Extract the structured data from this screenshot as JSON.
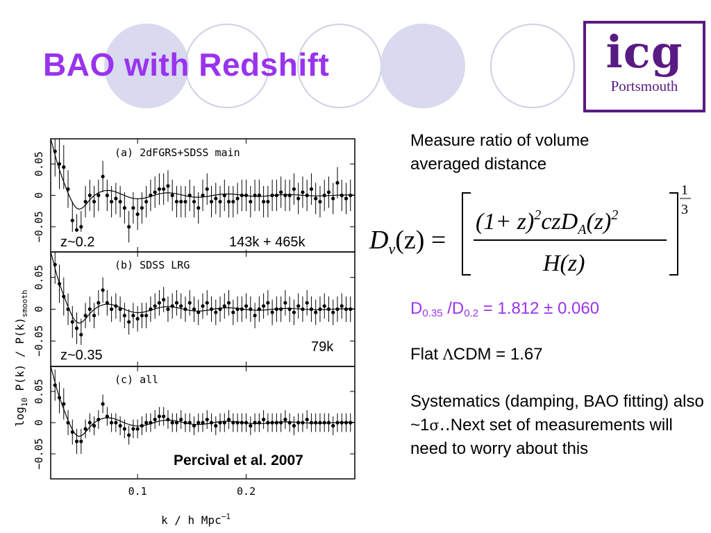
{
  "slide": {
    "title": "BAO with Redshift",
    "logo": {
      "mark": "icg",
      "sub": "Portsmouth"
    },
    "accent_color": "#9933ee",
    "logo_color": "#5a1a84"
  },
  "figure": {
    "panels": [
      {
        "label": "(a) 2dFGRS+SDSS main",
        "redshift": "z~0.2",
        "count": "143k + 465k"
      },
      {
        "label": "(b) SDSS LRG",
        "redshift": "z~0.35",
        "count": "79k"
      },
      {
        "label": "(c) all",
        "redshift": "",
        "count": ""
      }
    ],
    "citation": "Percival et al. 2007"
  },
  "chart_data": [
    {
      "type": "scatter",
      "title": "(a) 2dFGRS+SDSS main",
      "x": [
        0.024,
        0.028,
        0.032,
        0.036,
        0.04,
        0.044,
        0.048,
        0.052,
        0.056,
        0.06,
        0.064,
        0.068,
        0.072,
        0.076,
        0.08,
        0.084,
        0.088,
        0.092,
        0.096,
        0.1,
        0.104,
        0.108,
        0.112,
        0.116,
        0.12,
        0.124,
        0.128,
        0.132,
        0.136,
        0.14,
        0.144,
        0.148,
        0.152,
        0.156,
        0.16,
        0.164,
        0.168,
        0.172,
        0.176,
        0.18,
        0.184,
        0.188,
        0.192,
        0.196,
        0.2,
        0.204,
        0.208,
        0.212,
        0.216,
        0.22,
        0.224,
        0.228,
        0.232,
        0.236,
        0.24,
        0.244,
        0.248,
        0.252,
        0.256,
        0.26,
        0.264,
        0.268,
        0.272,
        0.276,
        0.28,
        0.284,
        0.288,
        0.292,
        0.296
      ],
      "values": [
        0.07,
        0.05,
        0.045,
        0.01,
        -0.04,
        -0.055,
        -0.05,
        -0.01,
        0.0,
        -0.01,
        0.0,
        0.03,
        0.0,
        -0.01,
        -0.005,
        -0.01,
        -0.02,
        -0.05,
        -0.02,
        -0.03,
        -0.02,
        -0.01,
        0.0,
        0.005,
        0.01,
        0.01,
        0.015,
        0.0,
        -0.01,
        -0.01,
        -0.01,
        0.0,
        -0.01,
        -0.02,
        0.0,
        0.01,
        -0.01,
        -0.005,
        -0.01,
        0.0,
        -0.01,
        -0.01,
        -0.005,
        0.0,
        0.0,
        -0.01,
        0.0,
        0.0,
        -0.01,
        -0.01,
        0.0,
        0.0,
        0.005,
        0.0,
        0.0,
        0.01,
        -0.005,
        0.005,
        0.0,
        0.01,
        -0.005,
        -0.01,
        0.0,
        0.005,
        -0.005,
        0.02,
        0.0,
        -0.005,
        0.0
      ],
      "errors": [
        0.04,
        0.04,
        0.035,
        0.03,
        0.03,
        0.025,
        0.025,
        0.025,
        0.025,
        0.025,
        0.025,
        0.025,
        0.025,
        0.025,
        0.025,
        0.025,
        0.025,
        0.025,
        0.025,
        0.025,
        0.025,
        0.025,
        0.025,
        0.025,
        0.025,
        0.025,
        0.025,
        0.025,
        0.025,
        0.025,
        0.025,
        0.025,
        0.025,
        0.025,
        0.025,
        0.025,
        0.025,
        0.025,
        0.025,
        0.025,
        0.025,
        0.025,
        0.025,
        0.025,
        0.025,
        0.025,
        0.025,
        0.025,
        0.025,
        0.025,
        0.025,
        0.025,
        0.025,
        0.025,
        0.025,
        0.025,
        0.025,
        0.025,
        0.025,
        0.025,
        0.025,
        0.025,
        0.025,
        0.025,
        0.025,
        0.025,
        0.025,
        0.025,
        0.025
      ],
      "xlim": [
        0.02,
        0.3
      ],
      "ylim": [
        -0.09,
        0.09
      ],
      "yticks": [
        "−0.05",
        "0",
        "0.05"
      ]
    },
    {
      "type": "scatter",
      "title": "(b) SDSS LRG",
      "x": [
        0.024,
        0.028,
        0.032,
        0.036,
        0.04,
        0.044,
        0.048,
        0.052,
        0.056,
        0.06,
        0.064,
        0.068,
        0.072,
        0.076,
        0.08,
        0.084,
        0.088,
        0.092,
        0.096,
        0.1,
        0.104,
        0.108,
        0.112,
        0.116,
        0.12,
        0.124,
        0.128,
        0.132,
        0.136,
        0.14,
        0.144,
        0.148,
        0.152,
        0.156,
        0.16,
        0.164,
        0.168,
        0.172,
        0.176,
        0.18,
        0.184,
        0.188,
        0.192,
        0.196,
        0.2,
        0.204,
        0.208,
        0.212,
        0.216,
        0.22,
        0.224,
        0.228,
        0.232,
        0.236,
        0.24,
        0.244,
        0.248,
        0.252,
        0.256,
        0.26,
        0.264,
        0.268,
        0.272,
        0.276,
        0.28,
        0.284,
        0.288,
        0.292,
        0.296
      ],
      "values": [
        0.07,
        0.04,
        0.02,
        0.0,
        -0.02,
        -0.03,
        -0.04,
        -0.01,
        0.0,
        -0.01,
        0.01,
        0.03,
        0.01,
        0.0,
        0.005,
        0.0,
        -0.01,
        -0.02,
        -0.01,
        -0.015,
        -0.01,
        -0.01,
        0.0,
        0.005,
        0.01,
        0.015,
        0.0,
        0.005,
        0.01,
        0.005,
        0.0,
        0.01,
        0.0,
        -0.005,
        0.005,
        0.01,
        0.0,
        -0.005,
        0.0,
        0.005,
        0.01,
        -0.005,
        0.0,
        0.0,
        0.005,
        0.0,
        -0.01,
        0.0,
        0.005,
        0.01,
        -0.005,
        0.0,
        0.0,
        0.01,
        0.0,
        -0.005,
        0.005,
        0.0,
        0.01,
        0.0,
        -0.005,
        0.0,
        0.005,
        0.0,
        -0.005,
        0.0,
        0.005,
        0.0,
        0.0
      ],
      "errors": [
        0.03,
        0.03,
        0.03,
        0.025,
        0.025,
        0.025,
        0.025,
        0.02,
        0.02,
        0.02,
        0.02,
        0.02,
        0.02,
        0.02,
        0.02,
        0.02,
        0.02,
        0.02,
        0.02,
        0.02,
        0.02,
        0.02,
        0.02,
        0.02,
        0.02,
        0.02,
        0.02,
        0.02,
        0.02,
        0.02,
        0.02,
        0.02,
        0.02,
        0.02,
        0.02,
        0.02,
        0.02,
        0.02,
        0.02,
        0.02,
        0.02,
        0.02,
        0.02,
        0.02,
        0.02,
        0.02,
        0.02,
        0.02,
        0.02,
        0.02,
        0.02,
        0.02,
        0.02,
        0.02,
        0.02,
        0.02,
        0.02,
        0.02,
        0.02,
        0.02,
        0.02,
        0.02,
        0.02,
        0.02,
        0.02,
        0.02,
        0.02,
        0.02,
        0.02
      ],
      "xlim": [
        0.02,
        0.3
      ],
      "ylim": [
        -0.09,
        0.09
      ],
      "yticks": [
        "−0.05",
        "0",
        "0.05"
      ]
    },
    {
      "type": "scatter",
      "title": "(c) all",
      "x": [
        0.024,
        0.028,
        0.032,
        0.036,
        0.04,
        0.044,
        0.048,
        0.052,
        0.056,
        0.06,
        0.064,
        0.068,
        0.072,
        0.076,
        0.08,
        0.084,
        0.088,
        0.092,
        0.096,
        0.1,
        0.104,
        0.108,
        0.112,
        0.116,
        0.12,
        0.124,
        0.128,
        0.132,
        0.136,
        0.14,
        0.144,
        0.148,
        0.152,
        0.156,
        0.16,
        0.164,
        0.168,
        0.172,
        0.176,
        0.18,
        0.184,
        0.188,
        0.192,
        0.196,
        0.2,
        0.204,
        0.208,
        0.212,
        0.216,
        0.22,
        0.224,
        0.228,
        0.232,
        0.236,
        0.24,
        0.244,
        0.248,
        0.252,
        0.256,
        0.26,
        0.264,
        0.268,
        0.272,
        0.276,
        0.28,
        0.284,
        0.288,
        0.292,
        0.296
      ],
      "values": [
        0.06,
        0.04,
        0.03,
        0.0,
        -0.015,
        -0.03,
        -0.03,
        -0.01,
        0.0,
        -0.005,
        0.005,
        0.03,
        0.01,
        0.0,
        0.0,
        -0.005,
        -0.01,
        -0.02,
        -0.01,
        -0.01,
        -0.005,
        0.0,
        0.0,
        0.005,
        0.01,
        0.01,
        0.005,
        0.0,
        0.0,
        0.005,
        0.0,
        0.0,
        -0.005,
        0.0,
        0.0,
        0.005,
        0.0,
        -0.005,
        0.0,
        0.0,
        0.005,
        0.0,
        0.0,
        0.0,
        0.0,
        -0.005,
        0.0,
        0.0,
        0.005,
        0.0,
        0.0,
        0.0,
        0.0,
        0.005,
        0.0,
        -0.005,
        0.0,
        0.0,
        0.005,
        0.0,
        0.0,
        0.0,
        0.0,
        0.0,
        -0.005,
        0.0,
        0.0,
        0.0,
        0.0
      ],
      "errors": [
        0.025,
        0.025,
        0.025,
        0.02,
        0.02,
        0.02,
        0.02,
        0.015,
        0.015,
        0.015,
        0.015,
        0.015,
        0.015,
        0.015,
        0.015,
        0.015,
        0.015,
        0.015,
        0.015,
        0.015,
        0.015,
        0.015,
        0.015,
        0.015,
        0.015,
        0.015,
        0.015,
        0.015,
        0.015,
        0.015,
        0.015,
        0.015,
        0.015,
        0.015,
        0.015,
        0.015,
        0.015,
        0.015,
        0.015,
        0.015,
        0.015,
        0.015,
        0.015,
        0.015,
        0.015,
        0.015,
        0.015,
        0.015,
        0.015,
        0.015,
        0.015,
        0.015,
        0.015,
        0.015,
        0.015,
        0.015,
        0.015,
        0.015,
        0.015,
        0.015,
        0.015,
        0.015,
        0.015,
        0.015,
        0.015,
        0.015,
        0.015,
        0.015,
        0.015
      ],
      "xlim": [
        0.02,
        0.3
      ],
      "ylim": [
        -0.09,
        0.09
      ],
      "yticks": [
        "−0.05",
        "0",
        "0.05"
      ],
      "xticks": [
        "0.1",
        "0.2"
      ],
      "xtick_values": [
        0.1,
        0.2
      ],
      "xlabel": "k / h Mpc",
      "xlabel_sup": "−1",
      "ylabel": "log",
      "ylabel_sub": "10",
      "ylabel_rest": " P(k) / P(k)",
      "ylabel_sub2": "smooth"
    }
  ],
  "text": {
    "measure": [
      "Measure ratio of volume",
      "averaged distance"
    ],
    "equation": {
      "lhs_d": "D",
      "lhs_sub": "v",
      "lhs_arg": "(z) =",
      "num": "(1+ z)",
      "num_sup": "2",
      "num_mid": "czD",
      "num_sub": "A",
      "num_arg": "(z)",
      "num_sup2": "2",
      "den": "H(z)",
      "exp_num": "1",
      "exp_den": "3"
    },
    "ratio": {
      "d1": "D",
      "d1_sub": "0.35",
      "mid": " /D",
      "d2_sub": "0.2",
      "rest": " = 1.812 ± 0.060"
    },
    "lcdm": {
      "pre": "Flat ",
      "lambda": "Λ",
      "post": "CDM = 1.67"
    },
    "systematics": {
      "pre": "Systematics (damping, BAO fitting) also ~1",
      "sigma": "σ",
      "dots": "‥",
      "post": "Next set of measurements will need to worry about this"
    }
  }
}
